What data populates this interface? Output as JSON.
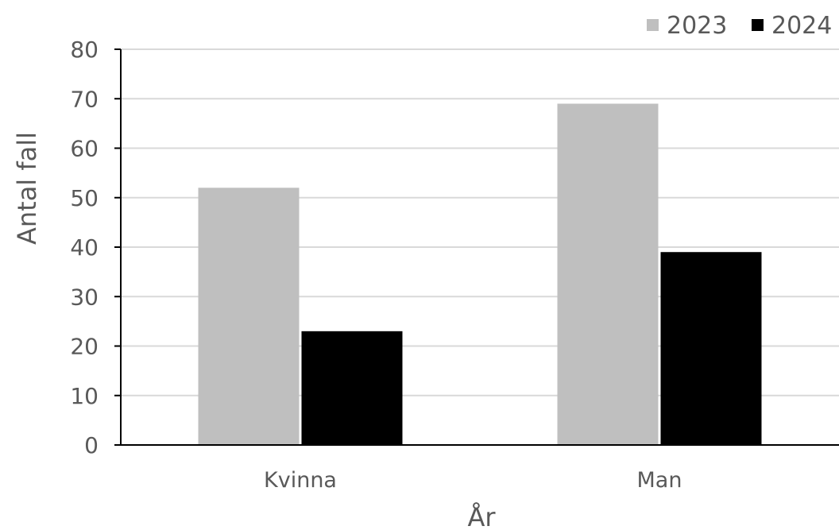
{
  "chart_data": {
    "type": "bar",
    "categories": [
      "Kvinna",
      "Man"
    ],
    "series": [
      {
        "name": "2023",
        "values": [
          52,
          69
        ],
        "color": "#bfbfbf"
      },
      {
        "name": "2024",
        "values": [
          23,
          39
        ],
        "color": "#000000"
      }
    ],
    "title": "",
    "xlabel": "År",
    "ylabel": "Antal fall",
    "ylim": [
      0,
      80
    ],
    "yticks": [
      "0",
      "10",
      "20",
      "30",
      "40",
      "50",
      "60",
      "70",
      "80"
    ],
    "grid": true,
    "legend_position": "top-right"
  }
}
